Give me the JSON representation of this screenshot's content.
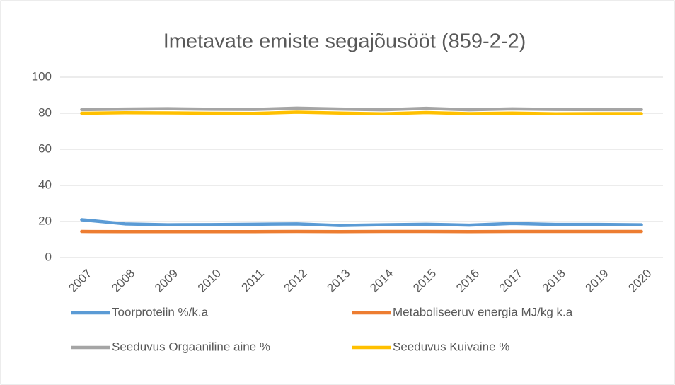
{
  "chart_data": {
    "type": "line",
    "title": "Imetavate emiste segajõusööt (859-2-2)",
    "categories": [
      "2007",
      "2008",
      "2009",
      "2010",
      "2011",
      "2012",
      "2013",
      "2014",
      "2015",
      "2016",
      "2017",
      "2018",
      "2019",
      "2020"
    ],
    "series": [
      {
        "name": "Toorproteiin  %/k.a",
        "color": "#5b9bd5",
        "values": [
          21,
          18.7,
          18.2,
          18.3,
          18.5,
          18.7,
          17.8,
          18.2,
          18.5,
          18.0,
          18.9,
          18.4,
          18.4,
          18.2
        ]
      },
      {
        "name": "Metaboliseeruv energia MJ/kg k.a",
        "color": "#ed7d31",
        "values": [
          14.5,
          14.4,
          14.4,
          14.4,
          14.4,
          14.5,
          14.4,
          14.5,
          14.5,
          14.4,
          14.5,
          14.5,
          14.5,
          14.5
        ]
      },
      {
        "name": "Seeduvus Orgaaniline aine %",
        "color": "#a5a5a5",
        "values": [
          82,
          82.3,
          82.5,
          82.2,
          82.1,
          82.8,
          82.3,
          81.9,
          82.7,
          81.9,
          82.4,
          82.1,
          82,
          82
        ]
      },
      {
        "name": "Seeduvus Kuivaine %",
        "color": "#ffc000",
        "values": [
          80,
          80.3,
          80.2,
          80,
          79.9,
          80.6,
          80.1,
          79.7,
          80.4,
          79.8,
          80.1,
          79.7,
          79.8,
          79.8
        ]
      }
    ],
    "ylim": [
      0,
      100
    ],
    "yticks": [
      0,
      20,
      40,
      60,
      80,
      100
    ],
    "grid": true
  }
}
